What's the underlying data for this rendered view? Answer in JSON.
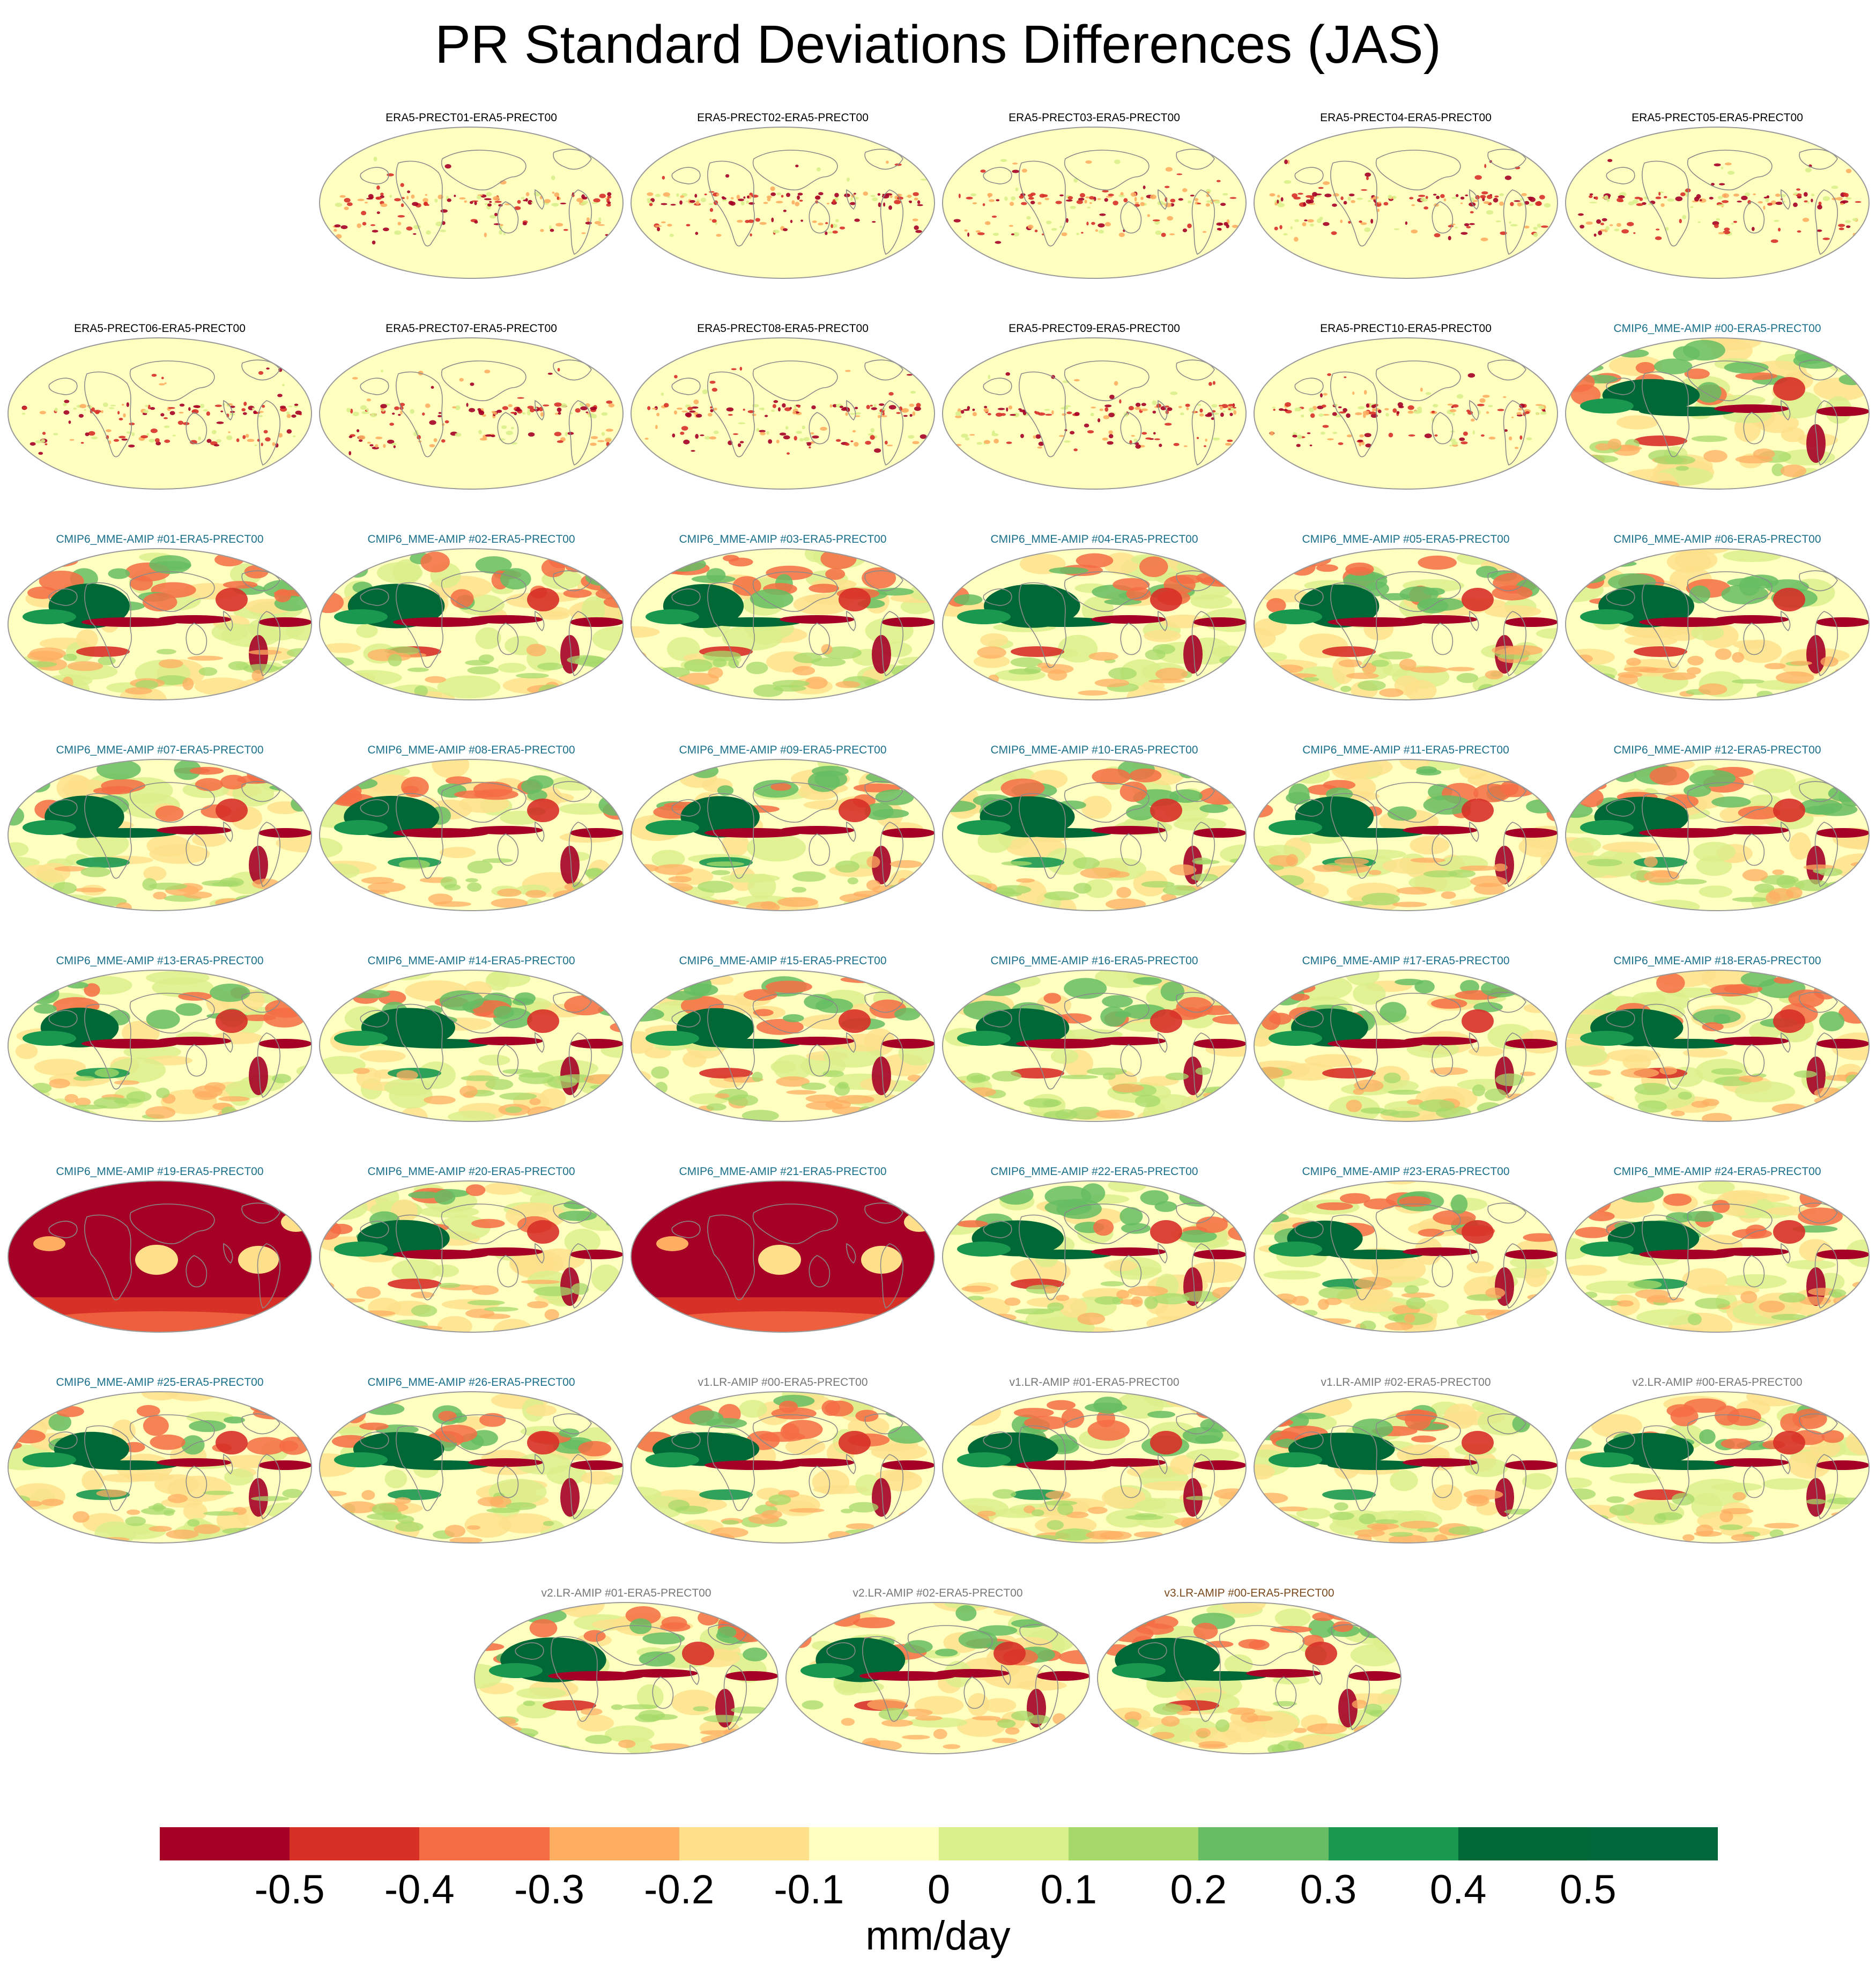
{
  "title": "PR Standard Deviations Differences (JAS)",
  "colors": {
    "era5_label": "#000000",
    "cmip6_label": "#1a6f8a",
    "v1v2_label": "#777777",
    "v3_label": "#7a4a1e",
    "coast": "#8a8a8a",
    "outline": "#9a9a9a"
  },
  "chart_data": {
    "type": "map-grid",
    "units": "mm/day",
    "colorbar": {
      "ticks": [
        "-0.5",
        "-0.4",
        "-0.3",
        "-0.2",
        "-0.1",
        "0",
        "0.1",
        "0.2",
        "0.3",
        "0.4",
        "0.5"
      ],
      "colors": [
        "#a50026",
        "#d73027",
        "#f46d43",
        "#fdae61",
        "#fee08b",
        "#ffffbf",
        "#d9ef8b",
        "#a6d96a",
        "#66bd63",
        "#1a9850",
        "#006837",
        "#00683a"
      ]
    },
    "panels": [
      {
        "label": "ERA5-PRECT01-ERA5-PRECT00",
        "group": "era5"
      },
      {
        "label": "ERA5-PRECT02-ERA5-PRECT00",
        "group": "era5"
      },
      {
        "label": "ERA5-PRECT03-ERA5-PRECT00",
        "group": "era5"
      },
      {
        "label": "ERA5-PRECT04-ERA5-PRECT00",
        "group": "era5"
      },
      {
        "label": "ERA5-PRECT05-ERA5-PRECT00",
        "group": "era5"
      },
      {
        "label": "ERA5-PRECT06-ERA5-PRECT00",
        "group": "era5"
      },
      {
        "label": "ERA5-PRECT07-ERA5-PRECT00",
        "group": "era5"
      },
      {
        "label": "ERA5-PRECT08-ERA5-PRECT00",
        "group": "era5"
      },
      {
        "label": "ERA5-PRECT09-ERA5-PRECT00",
        "group": "era5"
      },
      {
        "label": "ERA5-PRECT10-ERA5-PRECT00",
        "group": "era5"
      },
      {
        "label": "CMIP6_MME-AMIP  #00-ERA5-PRECT00",
        "group": "cmip6"
      },
      {
        "label": "CMIP6_MME-AMIP  #01-ERA5-PRECT00",
        "group": "cmip6"
      },
      {
        "label": "CMIP6_MME-AMIP  #02-ERA5-PRECT00",
        "group": "cmip6"
      },
      {
        "label": "CMIP6_MME-AMIP  #03-ERA5-PRECT00",
        "group": "cmip6"
      },
      {
        "label": "CMIP6_MME-AMIP  #04-ERA5-PRECT00",
        "group": "cmip6"
      },
      {
        "label": "CMIP6_MME-AMIP  #05-ERA5-PRECT00",
        "group": "cmip6"
      },
      {
        "label": "CMIP6_MME-AMIP  #06-ERA5-PRECT00",
        "group": "cmip6"
      },
      {
        "label": "CMIP6_MME-AMIP  #07-ERA5-PRECT00",
        "group": "cmip6"
      },
      {
        "label": "CMIP6_MME-AMIP  #08-ERA5-PRECT00",
        "group": "cmip6"
      },
      {
        "label": "CMIP6_MME-AMIP  #09-ERA5-PRECT00",
        "group": "cmip6"
      },
      {
        "label": "CMIP6_MME-AMIP  #10-ERA5-PRECT00",
        "group": "cmip6"
      },
      {
        "label": "CMIP6_MME-AMIP  #11-ERA5-PRECT00",
        "group": "cmip6"
      },
      {
        "label": "CMIP6_MME-AMIP  #12-ERA5-PRECT00",
        "group": "cmip6"
      },
      {
        "label": "CMIP6_MME-AMIP  #13-ERA5-PRECT00",
        "group": "cmip6"
      },
      {
        "label": "CMIP6_MME-AMIP  #14-ERA5-PRECT00",
        "group": "cmip6"
      },
      {
        "label": "CMIP6_MME-AMIP  #15-ERA5-PRECT00",
        "group": "cmip6"
      },
      {
        "label": "CMIP6_MME-AMIP  #16-ERA5-PRECT00",
        "group": "cmip6"
      },
      {
        "label": "CMIP6_MME-AMIP  #17-ERA5-PRECT00",
        "group": "cmip6"
      },
      {
        "label": "CMIP6_MME-AMIP  #18-ERA5-PRECT00",
        "group": "cmip6"
      },
      {
        "label": "CMIP6_MME-AMIP  #19-ERA5-PRECT00",
        "group": "cmip6"
      },
      {
        "label": "CMIP6_MME-AMIP  #20-ERA5-PRECT00",
        "group": "cmip6"
      },
      {
        "label": "CMIP6_MME-AMIP  #21-ERA5-PRECT00",
        "group": "cmip6"
      },
      {
        "label": "CMIP6_MME-AMIP  #22-ERA5-PRECT00",
        "group": "cmip6"
      },
      {
        "label": "CMIP6_MME-AMIP  #23-ERA5-PRECT00",
        "group": "cmip6"
      },
      {
        "label": "CMIP6_MME-AMIP  #24-ERA5-PRECT00",
        "group": "cmip6"
      },
      {
        "label": "CMIP6_MME-AMIP  #25-ERA5-PRECT00",
        "group": "cmip6"
      },
      {
        "label": "CMIP6_MME-AMIP  #26-ERA5-PRECT00",
        "group": "cmip6"
      },
      {
        "label": "v1.LR-AMIP  #00-ERA5-PRECT00",
        "group": "v1v2"
      },
      {
        "label": "v1.LR-AMIP  #01-ERA5-PRECT00",
        "group": "v1v2"
      },
      {
        "label": "v1.LR-AMIP  #02-ERA5-PRECT00",
        "group": "v1v2"
      },
      {
        "label": "v2.LR-AMIP  #00-ERA5-PRECT00",
        "group": "v1v2"
      },
      {
        "label": "v2.LR-AMIP  #01-ERA5-PRECT00",
        "group": "v1v2"
      },
      {
        "label": "v2.LR-AMIP  #02-ERA5-PRECT00",
        "group": "v1v2"
      },
      {
        "label": "v3.LR-AMIP  #00-ERA5-PRECT00",
        "group": "v3"
      }
    ]
  }
}
